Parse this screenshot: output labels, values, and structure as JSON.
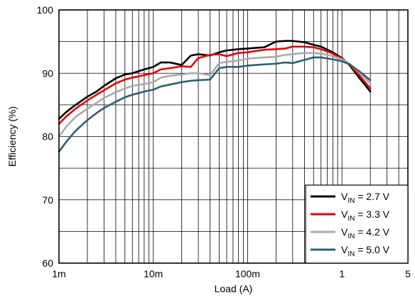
{
  "chart_data": {
    "type": "line",
    "title": "",
    "xlabel": "Load (A)",
    "ylabel": "Efficiency (%)",
    "x_scale": "log",
    "xlim": [
      0.001,
      5
    ],
    "ylim": [
      60,
      100
    ],
    "grid": true,
    "legend_position": "bottom-right",
    "x_ticks": [
      {
        "value": 0.001,
        "label": "1m"
      },
      {
        "value": 0.01,
        "label": "10m"
      },
      {
        "value": 0.1,
        "label": "100m"
      },
      {
        "value": 1,
        "label": "1"
      },
      {
        "value": 5,
        "label": "5"
      }
    ],
    "y_ticks": [
      {
        "value": 60,
        "label": "60"
      },
      {
        "value": 70,
        "label": "70"
      },
      {
        "value": 80,
        "label": "80"
      },
      {
        "value": 90,
        "label": "90"
      },
      {
        "value": 100,
        "label": "100"
      }
    ],
    "series": [
      {
        "name_main": "V",
        "name_sub": "IN",
        "name_rest": " = 2.7 V",
        "color": "#000000",
        "points": [
          [
            0.001,
            82.8
          ],
          [
            0.0012,
            83.9
          ],
          [
            0.0015,
            85.0
          ],
          [
            0.002,
            86.3
          ],
          [
            0.0025,
            87.1
          ],
          [
            0.003,
            88.0
          ],
          [
            0.004,
            89.2
          ],
          [
            0.005,
            89.8
          ],
          [
            0.006,
            90.0
          ],
          [
            0.008,
            90.6
          ],
          [
            0.01,
            91.0
          ],
          [
            0.012,
            91.7
          ],
          [
            0.015,
            91.7
          ],
          [
            0.02,
            91.3
          ],
          [
            0.025,
            92.8
          ],
          [
            0.03,
            93.0
          ],
          [
            0.04,
            92.8
          ],
          [
            0.05,
            93.3
          ],
          [
            0.06,
            93.6
          ],
          [
            0.08,
            93.8
          ],
          [
            0.1,
            93.9
          ],
          [
            0.12,
            94.0
          ],
          [
            0.15,
            94.1
          ],
          [
            0.2,
            95.0
          ],
          [
            0.25,
            95.1
          ],
          [
            0.3,
            95.1
          ],
          [
            0.4,
            94.9
          ],
          [
            0.5,
            94.5
          ],
          [
            0.6,
            94.2
          ],
          [
            0.8,
            93.3
          ],
          [
            1.0,
            92.4
          ],
          [
            1.2,
            91.3
          ],
          [
            1.5,
            89.4
          ],
          [
            2.0,
            87.1
          ]
        ]
      },
      {
        "name_main": "V",
        "name_sub": "IN",
        "name_rest": " = 3.3 V",
        "color": "#e8000b",
        "points": [
          [
            0.001,
            82.0
          ],
          [
            0.0012,
            83.2
          ],
          [
            0.0015,
            84.4
          ],
          [
            0.002,
            85.7
          ],
          [
            0.0025,
            86.6
          ],
          [
            0.003,
            87.3
          ],
          [
            0.004,
            88.4
          ],
          [
            0.005,
            89.0
          ],
          [
            0.006,
            89.3
          ],
          [
            0.008,
            89.7
          ],
          [
            0.01,
            90.0
          ],
          [
            0.012,
            90.6
          ],
          [
            0.015,
            90.8
          ],
          [
            0.02,
            91.1
          ],
          [
            0.025,
            91.0
          ],
          [
            0.03,
            92.4
          ],
          [
            0.04,
            92.9
          ],
          [
            0.05,
            93.0
          ],
          [
            0.06,
            92.7
          ],
          [
            0.08,
            93.2
          ],
          [
            0.1,
            93.3
          ],
          [
            0.12,
            93.5
          ],
          [
            0.15,
            93.7
          ],
          [
            0.2,
            93.8
          ],
          [
            0.25,
            93.9
          ],
          [
            0.3,
            94.2
          ],
          [
            0.4,
            94.2
          ],
          [
            0.5,
            94.1
          ],
          [
            0.6,
            93.8
          ],
          [
            0.8,
            93.1
          ],
          [
            1.0,
            92.3
          ],
          [
            1.2,
            91.4
          ],
          [
            1.5,
            89.8
          ],
          [
            2.0,
            87.6
          ]
        ]
      },
      {
        "name_main": "V",
        "name_sub": "IN",
        "name_rest": " = 4.2 V",
        "color": "#aaaaaa",
        "points": [
          [
            0.001,
            80.0
          ],
          [
            0.0012,
            81.6
          ],
          [
            0.0015,
            83.1
          ],
          [
            0.002,
            84.4
          ],
          [
            0.0025,
            85.3
          ],
          [
            0.003,
            86.1
          ],
          [
            0.004,
            87.0
          ],
          [
            0.005,
            87.6
          ],
          [
            0.006,
            88.0
          ],
          [
            0.008,
            88.3
          ],
          [
            0.01,
            88.6
          ],
          [
            0.012,
            89.3
          ],
          [
            0.015,
            89.6
          ],
          [
            0.02,
            89.8
          ],
          [
            0.025,
            90.0
          ],
          [
            0.03,
            90.0
          ],
          [
            0.04,
            89.7
          ],
          [
            0.05,
            91.6
          ],
          [
            0.06,
            91.8
          ],
          [
            0.08,
            92.0
          ],
          [
            0.1,
            92.3
          ],
          [
            0.12,
            92.4
          ],
          [
            0.15,
            92.5
          ],
          [
            0.2,
            92.6
          ],
          [
            0.25,
            92.9
          ],
          [
            0.3,
            93.0
          ],
          [
            0.4,
            93.2
          ],
          [
            0.5,
            93.2
          ],
          [
            0.6,
            93.1
          ],
          [
            0.8,
            92.7
          ],
          [
            1.0,
            92.2
          ],
          [
            1.2,
            91.5
          ],
          [
            1.5,
            90.2
          ],
          [
            2.0,
            88.4
          ]
        ]
      },
      {
        "name_main": "V",
        "name_sub": "IN",
        "name_rest": " = 5.0 V",
        "color": "#2e5f73",
        "points": [
          [
            0.001,
            77.6
          ],
          [
            0.0012,
            79.2
          ],
          [
            0.0015,
            80.9
          ],
          [
            0.002,
            82.6
          ],
          [
            0.0025,
            83.7
          ],
          [
            0.003,
            84.5
          ],
          [
            0.004,
            85.5
          ],
          [
            0.005,
            86.2
          ],
          [
            0.006,
            86.6
          ],
          [
            0.008,
            87.1
          ],
          [
            0.01,
            87.4
          ],
          [
            0.012,
            87.9
          ],
          [
            0.015,
            88.2
          ],
          [
            0.02,
            88.6
          ],
          [
            0.025,
            88.8
          ],
          [
            0.03,
            88.9
          ],
          [
            0.04,
            89.0
          ],
          [
            0.05,
            90.8
          ],
          [
            0.06,
            91.0
          ],
          [
            0.08,
            91.0
          ],
          [
            0.1,
            91.2
          ],
          [
            0.12,
            91.3
          ],
          [
            0.15,
            91.4
          ],
          [
            0.2,
            91.5
          ],
          [
            0.25,
            91.7
          ],
          [
            0.3,
            91.6
          ],
          [
            0.4,
            92.1
          ],
          [
            0.5,
            92.5
          ],
          [
            0.6,
            92.5
          ],
          [
            0.8,
            92.2
          ],
          [
            1.0,
            91.9
          ],
          [
            1.2,
            91.4
          ],
          [
            1.5,
            90.4
          ],
          [
            2.0,
            88.9
          ]
        ]
      }
    ]
  }
}
